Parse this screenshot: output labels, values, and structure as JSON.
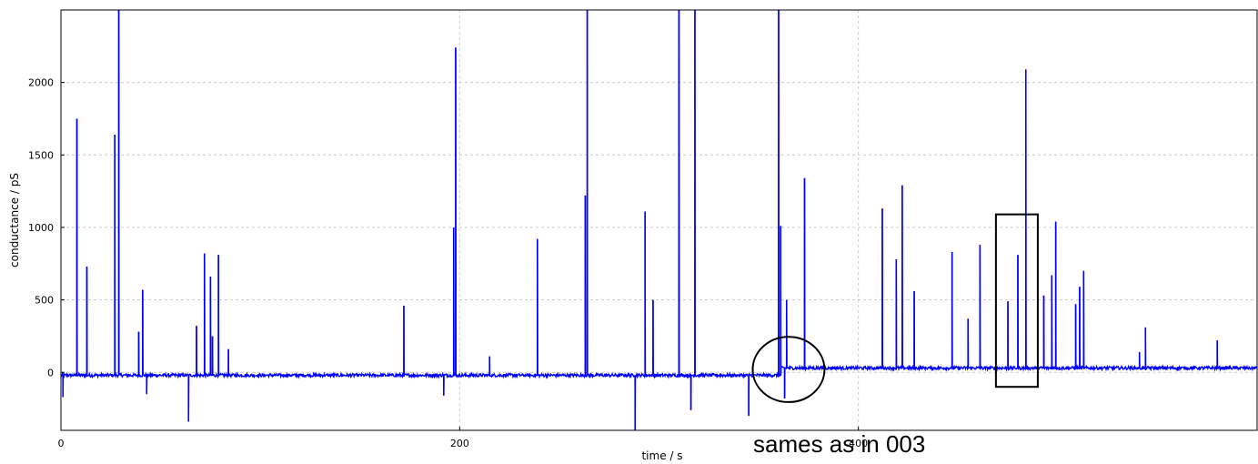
{
  "chart_data": {
    "type": "line",
    "xlabel": "time / s",
    "ylabel": "conductance / pS",
    "xlim": [
      0,
      600
    ],
    "ylim": [
      -400,
      2500
    ],
    "x_ticks": [
      "0",
      "200",
      "400"
    ],
    "y_ticks": [
      "0",
      "500",
      "1000",
      "1500",
      "2000"
    ],
    "x_tick_values": [
      0,
      200,
      400
    ],
    "y_tick_values": [
      0,
      500,
      1000,
      1500,
      2000
    ],
    "grid": true,
    "line_color": "#0000ff",
    "series": [
      {
        "baseline_segments": [
          {
            "x_start": 0,
            "x_end": 361,
            "y": -20
          },
          {
            "x_start": 361,
            "x_end": 600,
            "y": 30
          }
        ],
        "spikes": [
          {
            "x": 1,
            "y": -170
          },
          {
            "x": 8,
            "y": 1750
          },
          {
            "x": 13,
            "y": 730
          },
          {
            "x": 27,
            "y": 1640
          },
          {
            "x": 29,
            "y": 2500
          },
          {
            "x": 39,
            "y": 280
          },
          {
            "x": 41,
            "y": 570
          },
          {
            "x": 43,
            "y": -150
          },
          {
            "x": 64,
            "y": -340
          },
          {
            "x": 68,
            "y": 320
          },
          {
            "x": 72,
            "y": 820
          },
          {
            "x": 75,
            "y": 660
          },
          {
            "x": 76,
            "y": 250
          },
          {
            "x": 79,
            "y": 810
          },
          {
            "x": 84,
            "y": 160
          },
          {
            "x": 172,
            "y": 460
          },
          {
            "x": 192,
            "y": -160
          },
          {
            "x": 197,
            "y": 1000
          },
          {
            "x": 198,
            "y": 2240
          },
          {
            "x": 215,
            "y": 110
          },
          {
            "x": 239,
            "y": 920
          },
          {
            "x": 263,
            "y": 1220
          },
          {
            "x": 264,
            "y": 2500
          },
          {
            "x": 288,
            "y": -400
          },
          {
            "x": 293,
            "y": 1110
          },
          {
            "x": 297,
            "y": 500
          },
          {
            "x": 310,
            "y": 2500
          },
          {
            "x": 316,
            "y": -260
          },
          {
            "x": 318,
            "y": 2500
          },
          {
            "x": 345,
            "y": -300
          },
          {
            "x": 360,
            "y": 2500
          },
          {
            "x": 361,
            "y": 1010
          },
          {
            "x": 363,
            "y": -180
          },
          {
            "x": 364,
            "y": 500
          },
          {
            "x": 373,
            "y": 1340
          },
          {
            "x": 412,
            "y": 1130
          },
          {
            "x": 419,
            "y": 780
          },
          {
            "x": 422,
            "y": 1290
          },
          {
            "x": 428,
            "y": 560
          },
          {
            "x": 447,
            "y": 830
          },
          {
            "x": 455,
            "y": 370
          },
          {
            "x": 461,
            "y": 880
          },
          {
            "x": 475,
            "y": 490
          },
          {
            "x": 480,
            "y": 810
          },
          {
            "x": 484,
            "y": 2090
          },
          {
            "x": 493,
            "y": 530
          },
          {
            "x": 497,
            "y": 670
          },
          {
            "x": 499,
            "y": 1040
          },
          {
            "x": 509,
            "y": 470
          },
          {
            "x": 511,
            "y": 590
          },
          {
            "x": 513,
            "y": 700
          },
          {
            "x": 541,
            "y": 140
          },
          {
            "x": 544,
            "y": 310
          },
          {
            "x": 580,
            "y": 220
          }
        ]
      }
    ],
    "annotation": "sames as in 003",
    "markers": [
      {
        "shape": "circle",
        "cx": 365,
        "cy": 20,
        "rx": 18,
        "ry": 225
      },
      {
        "shape": "rect",
        "x0": 469,
        "x1": 490,
        "y0": -100,
        "y1": 1090
      }
    ]
  }
}
